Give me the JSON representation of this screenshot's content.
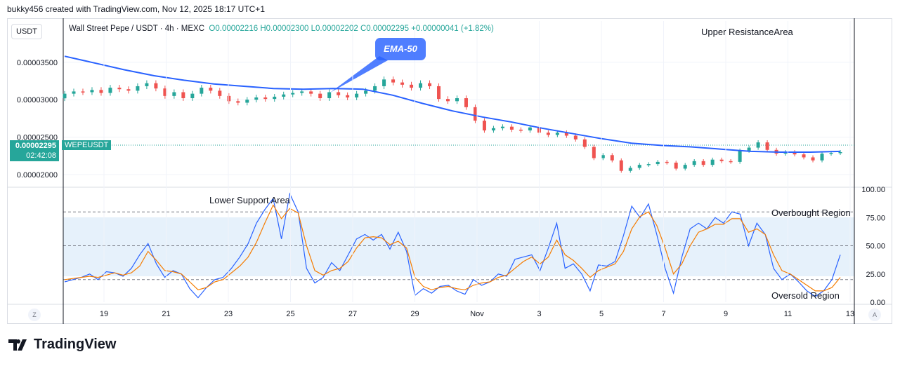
{
  "header": {
    "text": "bukky456 created with TradingView.com, Nov 12, 2025 18:17 UTC+1"
  },
  "symbol_box": "USDT",
  "legend": {
    "title": "Wall Street Pepe / USDT · 4h · MEXC",
    "o": "O0.00002216",
    "h": "H0.00002300",
    "l": "L0.00002202",
    "c": "C0.00002295",
    "change": "+0.00000041 (+1.82%)"
  },
  "annotations": {
    "upper": "Upper ResistanceArea",
    "lower": "Lower Support Area",
    "overbought": "Overbought Region",
    "oversold": "Oversold Region",
    "ema": "EMA-50"
  },
  "price_tag": {
    "price": "0.00002295",
    "countdown": "02:42:08",
    "symbol": "WEPEUSDT"
  },
  "footer": {
    "logo_text": "TradingView",
    "left_btn": "Z",
    "right_btn": "A"
  },
  "colors": {
    "up": "#26a69a",
    "down": "#ef5350",
    "ema": "#2962ff",
    "rsi": "#2962ff",
    "rsi_ma": "#f57c00",
    "band": "#e3f0fb"
  },
  "chart_data": [
    {
      "type": "candlestick",
      "title": "Wall Street Pepe / USDT · 4h · MEXC",
      "y_axis_ticks": [
        "0.00003500",
        "0.00003000",
        "0.00002500",
        "0.00002000"
      ],
      "ylim": [
        1.86e-05,
        4.05e-05
      ],
      "x_ticks": [
        "19",
        "21",
        "23",
        "25",
        "27",
        "29",
        "Nov",
        "3",
        "5",
        "7",
        "9",
        "11",
        "13"
      ],
      "last_close": 2.295e-05,
      "closes": [
        3.08e-05,
        3.11e-05,
        3.1e-05,
        3.13e-05,
        3.09e-05,
        3.16e-05,
        3.14e-05,
        3.12e-05,
        3.18e-05,
        3.22e-05,
        3.15e-05,
        3.05e-05,
        3.1e-05,
        3.02e-05,
        3.08e-05,
        3.16e-05,
        3.12e-05,
        3.05e-05,
        2.98e-05,
        2.96e-05,
        3e-05,
        3.03e-05,
        3.01e-05,
        3.04e-05,
        3.07e-05,
        3.09e-05,
        3.11e-05,
        3.08e-05,
        3.02e-05,
        3.1e-05,
        3.06e-05,
        3.03e-05,
        3.08e-05,
        3.12e-05,
        3.18e-05,
        3.27e-05,
        3.23e-05,
        3.2e-05,
        3.16e-05,
        3.22e-05,
        3.18e-05,
        3.01e-05,
        2.98e-05,
        3.02e-05,
        2.9e-05,
        2.72e-05,
        2.59e-05,
        2.62e-05,
        2.64e-05,
        2.6e-05,
        2.59e-05,
        2.63e-05,
        2.56e-05,
        2.53e-05,
        2.56e-05,
        2.52e-05,
        2.47e-05,
        2.37e-05,
        2.22e-05,
        2.26e-05,
        2.19e-05,
        2.05e-05,
        2.09e-05,
        2.13e-05,
        2.14e-05,
        2.17e-05,
        2.16e-05,
        2.08e-05,
        2.13e-05,
        2.18e-05,
        2.13e-05,
        2.2e-05,
        2.18e-05,
        2.17e-05,
        2.32e-05,
        2.36e-05,
        2.43e-05,
        2.33e-05,
        2.28e-05,
        2.3e-05,
        2.27e-05,
        2.23e-05,
        2.19e-05,
        2.28e-05,
        2.29e-05,
        2.3e-05
      ],
      "ema50": [
        3.58e-05,
        3.49e-05,
        3.4e-05,
        3.32e-05,
        3.26e-05,
        3.21e-05,
        3.18e-05,
        3.15e-05,
        3.14e-05,
        3.15e-05,
        3.14e-05,
        3.06e-05,
        2.95e-05,
        2.85e-05,
        2.77e-05,
        2.7e-05,
        2.62e-05,
        2.55e-05,
        2.48e-05,
        2.42e-05,
        2.39e-05,
        2.37e-05,
        2.34e-05,
        2.31e-05,
        2.3e-05,
        2.3e-05,
        2.31e-05
      ],
      "ema_label": "EMA-50"
    },
    {
      "type": "line",
      "y_axis_ticks": [
        "100.00",
        "75.00",
        "50.00",
        "25.00",
        "0.00"
      ],
      "ylim": [
        0,
        100
      ],
      "levels": [
        80,
        50,
        20
      ],
      "series": [
        {
          "values": [
            18,
            20,
            22,
            25,
            20,
            27,
            26,
            23,
            30,
            42,
            52,
            34,
            22,
            28,
            25,
            12,
            4,
            13,
            20,
            22,
            30,
            40,
            52,
            70,
            82,
            92,
            56,
            96,
            80,
            30,
            17,
            22,
            35,
            28,
            42,
            56,
            60,
            55,
            60,
            47,
            62,
            45,
            6,
            12,
            8,
            14,
            15,
            10,
            7,
            20,
            15,
            18,
            25,
            23,
            38,
            40,
            42,
            28,
            48,
            70,
            30,
            34,
            25,
            10,
            33,
            32,
            36,
            59,
            85,
            75,
            87,
            60,
            30,
            8,
            40,
            65,
            70,
            65,
            75,
            70,
            80,
            78,
            50,
            70,
            60,
            30,
            20,
            25,
            18,
            10,
            5,
            10,
            20,
            42
          ]
        },
        {
          "values": [
            20,
            21,
            22,
            23,
            22,
            24,
            26,
            24,
            26,
            32,
            45,
            37,
            28,
            27,
            25,
            18,
            11,
            13,
            18,
            20,
            26,
            32,
            40,
            53,
            70,
            86,
            74,
            83,
            79,
            50,
            28,
            24,
            28,
            30,
            36,
            48,
            57,
            58,
            57,
            51,
            54,
            48,
            22,
            14,
            11,
            13,
            14,
            12,
            11,
            15,
            17,
            18,
            22,
            24,
            30,
            36,
            40,
            34,
            40,
            55,
            42,
            37,
            30,
            22,
            28,
            31,
            34,
            45,
            65,
            76,
            80,
            68,
            48,
            25,
            34,
            50,
            62,
            65,
            69,
            69,
            74,
            74,
            62,
            65,
            60,
            42,
            28,
            25,
            20,
            15,
            10,
            10,
            13,
            22
          ]
        }
      ],
      "annotation_upper": "Overbought Region",
      "annotation_lower": "Oversold Region"
    }
  ]
}
